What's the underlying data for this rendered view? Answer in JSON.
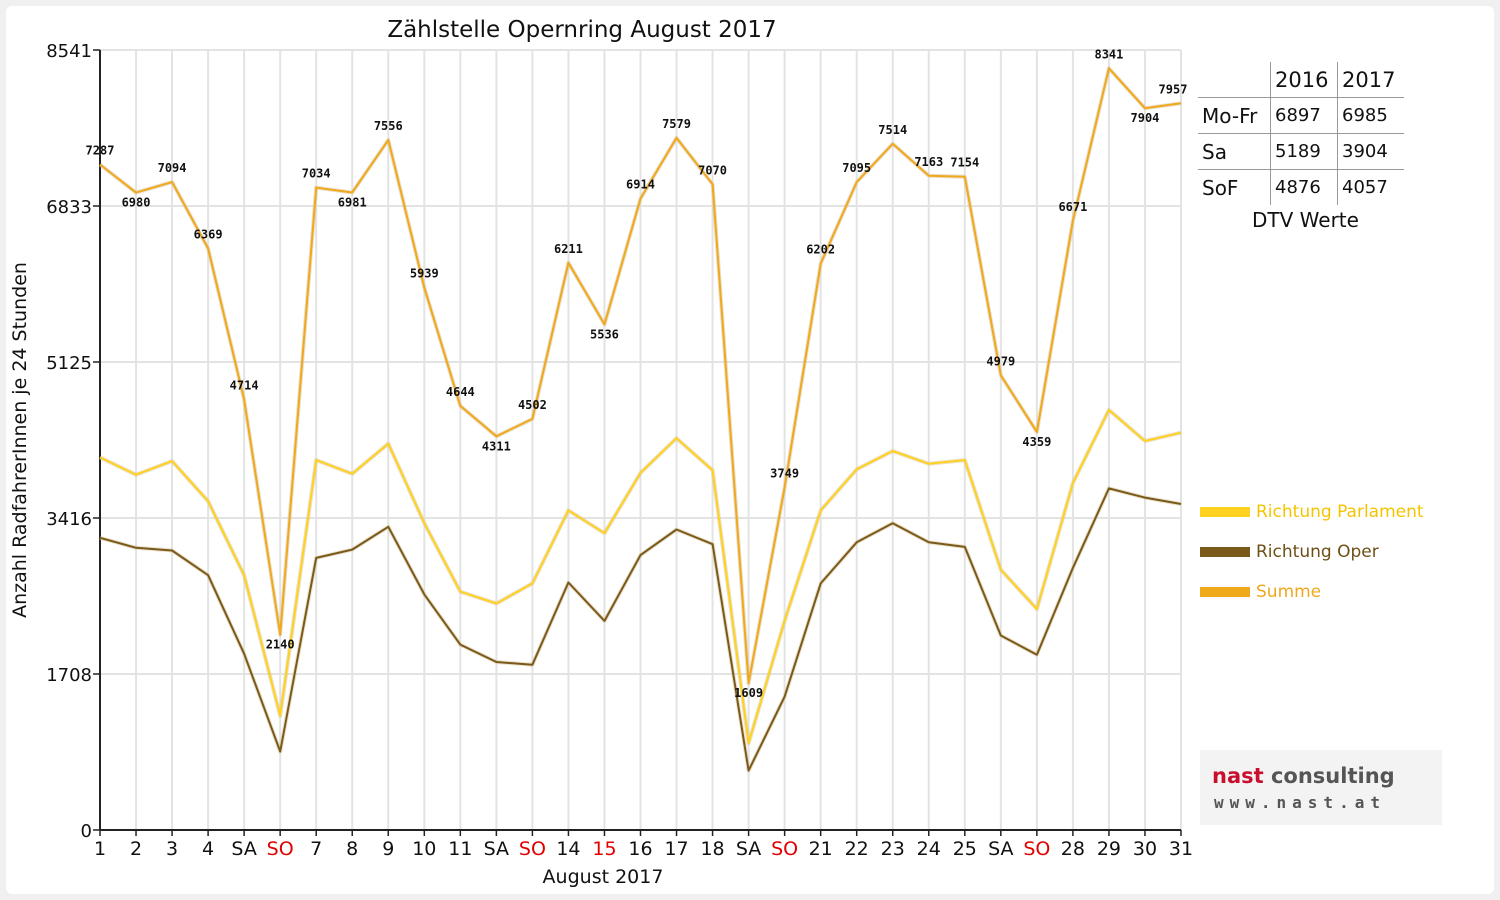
{
  "chart_data": {
    "type": "line",
    "title": "Zählstelle Opernring August 2017",
    "xlabel": "August 2017",
    "ylabel": "Anzahl RadfahrerInnen je 24 Stunden",
    "ylim": [
      0,
      8541
    ],
    "yticks": [
      "0",
      "1708",
      "3416",
      "5125",
      "6833",
      "8541"
    ],
    "categories": [
      "1",
      "2",
      "3",
      "4",
      "SA",
      "SO",
      "7",
      "8",
      "9",
      "10",
      "11",
      "SA",
      "SO",
      "14",
      "15",
      "16",
      "17",
      "18",
      "SA",
      "SO",
      "21",
      "22",
      "23",
      "24",
      "25",
      "SA",
      "SO",
      "28",
      "29",
      "30",
      "31"
    ],
    "red_categories": [
      "SO",
      "15"
    ],
    "grid": true,
    "legend_position": "right",
    "series": [
      {
        "name": "Richtung Parlament",
        "color": "#ffd21f",
        "values": [
          4080,
          3890,
          4040,
          3600,
          2790,
          1250,
          4050,
          3900,
          4230,
          3360,
          2610,
          2480,
          2700,
          3500,
          3250,
          3910,
          4290,
          3940,
          950,
          2290,
          3500,
          3950,
          4150,
          4010,
          4050,
          2850,
          2420,
          3800,
          4600,
          4260,
          4350
        ]
      },
      {
        "name": "Richtung Oper",
        "color": "#7a5a1a",
        "values": [
          3200,
          3090,
          3060,
          2790,
          1930,
          860,
          2980,
          3070,
          3320,
          2580,
          2030,
          1840,
          1810,
          2710,
          2290,
          3010,
          3290,
          3130,
          650,
          1460,
          2700,
          3150,
          3360,
          3150,
          3100,
          2130,
          1920,
          2870,
          3740,
          3640,
          3570
        ]
      },
      {
        "name": "Summe",
        "color": "#f0a81c",
        "values": [
          7287,
          6980,
          7094,
          6369,
          4714,
          2140,
          7034,
          6981,
          7556,
          5939,
          4644,
          4311,
          4502,
          6211,
          5536,
          6914,
          7579,
          7070,
          1609,
          3749,
          6202,
          7095,
          7514,
          7163,
          7154,
          4979,
          4359,
          6671,
          8341,
          7904,
          7957
        ],
        "labels": [
          "7287",
          "6980",
          "7094",
          "6369",
          "4714",
          "2140",
          "7034",
          "6981",
          "7556",
          "5939",
          "4644",
          "4311",
          "4502",
          "6211",
          "5536",
          "6914",
          "7579",
          "7070",
          "1609",
          "3749",
          "6202",
          "7095",
          "7514",
          "7163",
          "7154",
          "4979",
          "4359",
          "6671",
          "8341",
          "7904",
          "7957"
        ]
      }
    ]
  },
  "dtv_table": {
    "header": [
      "",
      "2016",
      "2017"
    ],
    "rows": [
      {
        "label": "Mo-Fr",
        "v2016": "6897",
        "v2017": "6985"
      },
      {
        "label": "Sa",
        "v2016": "5189",
        "v2017": "3904"
      },
      {
        "label": "SoF",
        "v2016": "4876",
        "v2017": "4057"
      }
    ],
    "caption": "DTV Werte"
  },
  "logo": {
    "word1": "nast",
    "word2": "consulting",
    "url": "www.nast.at"
  }
}
